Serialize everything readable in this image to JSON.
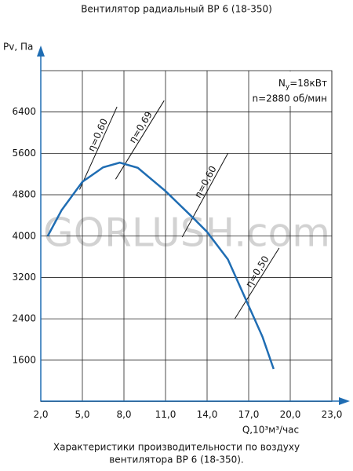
{
  "chart_data": {
    "type": "line",
    "title": "Вентилятор радиальный ВР 6 (18-350)",
    "y_label": "Pv, Па",
    "x_label": "Q,10³м³/час",
    "caption": [
      "Характеристики производительности по воздуху",
      "вентилятора  ВР 6 (18-350)."
    ],
    "watermark": "GORLUSH.com",
    "info": {
      "n_symbol": "N",
      "n_sub": "у",
      "power": "=18кВт",
      "speed": "n=2880 об/мин"
    },
    "xlim": [
      2,
      23
    ],
    "ylim": [
      800,
      7200
    ],
    "xticks": [
      {
        "value": 2,
        "label": "2,0"
      },
      {
        "value": 5,
        "label": "5,0"
      },
      {
        "value": 8,
        "label": "8,0"
      },
      {
        "value": 11,
        "label": "11,0"
      },
      {
        "value": 14,
        "label": "14,0"
      },
      {
        "value": 17,
        "label": "17,0"
      },
      {
        "value": 20,
        "label": "20,0"
      },
      {
        "value": 23,
        "label": "23,0"
      }
    ],
    "yticks": [
      1600,
      2400,
      3200,
      4000,
      4800,
      5600,
      6400
    ],
    "grid": true,
    "series": [
      {
        "color": "#1f6db3",
        "x": [
          2.5,
          3.5,
          5.0,
          6.5,
          7.7,
          9.0,
          11.0,
          13.0,
          14.0,
          15.5,
          17.0,
          18.0,
          18.8
        ],
        "values": [
          4000,
          4500,
          5050,
          5330,
          5420,
          5320,
          4870,
          4350,
          4080,
          3550,
          2650,
          2050,
          1430
        ]
      }
    ],
    "efficiency_lines": [
      {
        "label": "η=0,60",
        "x": [
          4.8,
          7.5
        ],
        "values": [
          4900,
          6500
        ]
      },
      {
        "label": "η=0,69",
        "x": [
          7.4,
          10.9
        ],
        "values": [
          5100,
          6620
        ]
      },
      {
        "label": "η=0,60",
        "x": [
          12.2,
          15.5
        ],
        "values": [
          3980,
          5600
        ]
      },
      {
        "label": "η=0,50",
        "x": [
          16.0,
          19.2
        ],
        "values": [
          2400,
          3770
        ]
      }
    ]
  }
}
